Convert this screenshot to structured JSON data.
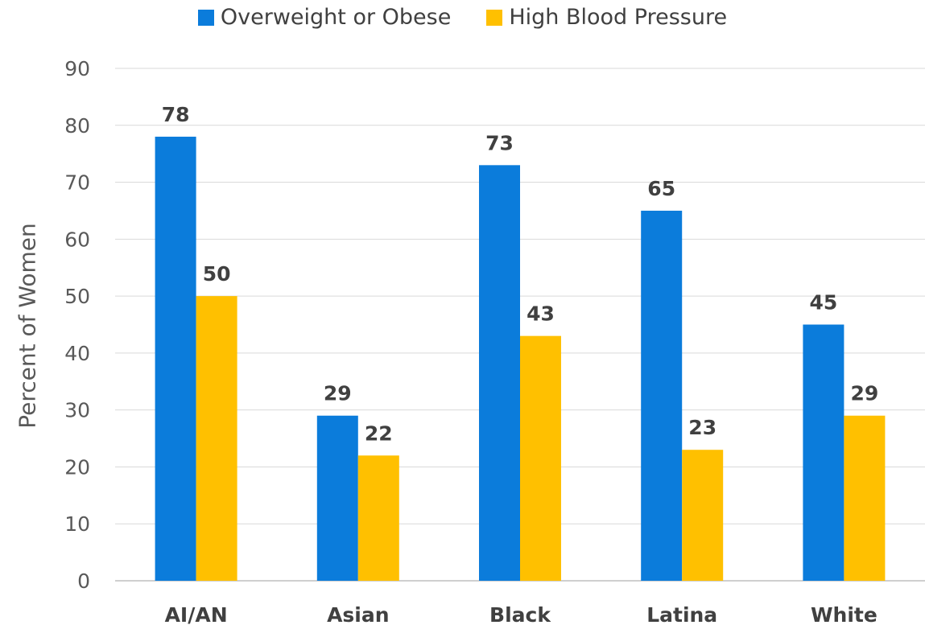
{
  "chart_data": {
    "type": "bar",
    "categories": [
      "AI/AN",
      "Asian",
      "Black",
      "Latina",
      "White"
    ],
    "series": [
      {
        "name": "Overweight or Obese",
        "values": [
          78,
          29,
          73,
          65,
          45
        ],
        "labels": [
          "78",
          "29",
          "73",
          "65",
          "45"
        ],
        "color": "#0B7CDB"
      },
      {
        "name": "High Blood Pressure",
        "values": [
          50,
          22,
          43,
          23,
          29
        ],
        "labels": [
          "50",
          "22",
          "43",
          "23",
          "29"
        ],
        "color": "#FFC000"
      }
    ],
    "title": "",
    "xlabel": "",
    "ylabel": "Percent of Women",
    "ylim": [
      0,
      90
    ],
    "yticks": [
      0,
      10,
      20,
      30,
      40,
      50,
      60,
      70,
      80,
      90
    ],
    "grid": true,
    "legend_position": "top"
  }
}
